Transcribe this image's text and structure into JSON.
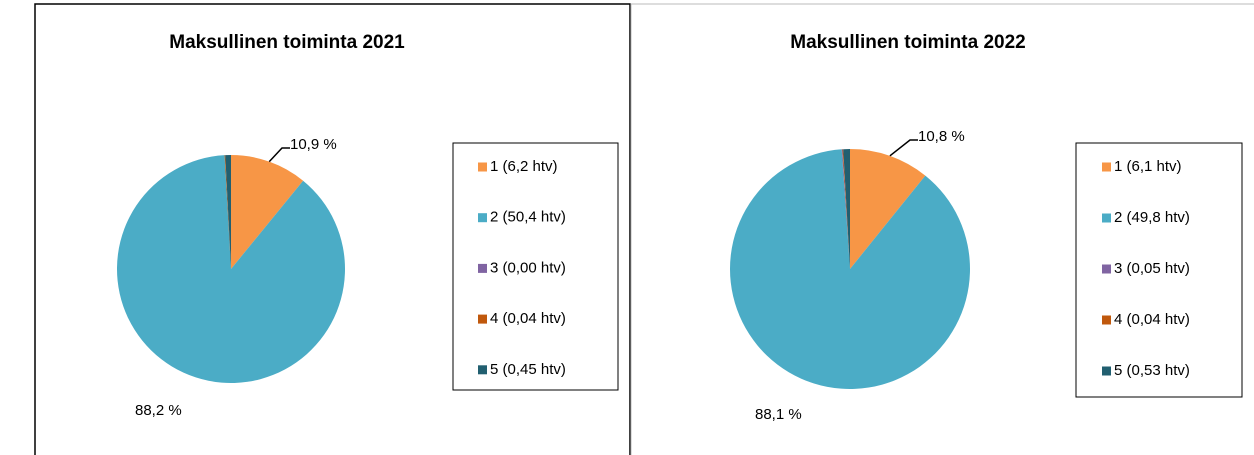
{
  "chart_data": [
    {
      "type": "pie",
      "title": "Maksullinen toiminta 2021",
      "categories": [
        "1 (6,2 htv)",
        "2 (50,4 htv)",
        "3 (0,00 htv)",
        "4 (0,04 htv)",
        "5 (0,45 htv)"
      ],
      "values": [
        10.9,
        88.2,
        0,
        0.1,
        0.8
      ],
      "value_labels": [
        "10,9 %",
        "88,2 %",
        null,
        null,
        null
      ],
      "colors": [
        "#f79646",
        "#4bacc6",
        "#8064a2",
        "#c0580c",
        "#215f70"
      ],
      "legend": "right"
    },
    {
      "type": "pie",
      "title": "Maksullinen toiminta 2022",
      "categories": [
        "1 (6,1 htv)",
        "2 (49,8 htv)",
        "3 (0,05 htv)",
        "4 (0,04 htv)",
        "5 (0,53 htv)"
      ],
      "values": [
        10.8,
        88.1,
        0.1,
        0.1,
        0.9
      ],
      "value_labels": [
        "10,8 %",
        "88,1 %",
        null,
        null,
        null
      ],
      "colors": [
        "#f79646",
        "#4bacc6",
        "#8064a2",
        "#c0580c",
        "#215f70"
      ],
      "legend": "right"
    }
  ]
}
